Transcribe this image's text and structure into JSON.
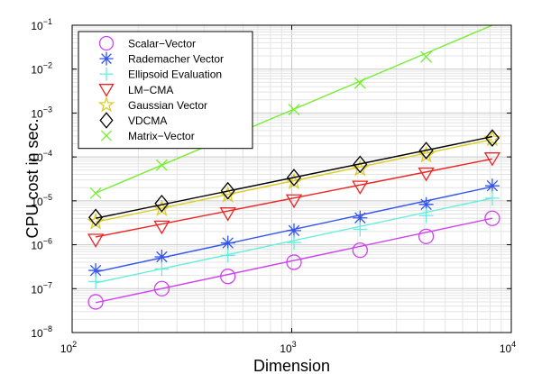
{
  "chart_data": {
    "type": "line",
    "title": "",
    "xlabel": "Dimension",
    "ylabel": "CPU cost in sec.",
    "xscale": "log",
    "yscale": "log",
    "xlim": [
      100,
      10000
    ],
    "ylim": [
      1e-08,
      0.1
    ],
    "grid": true,
    "legend_position": "top-left",
    "x_ticks": [
      {
        "base": "10",
        "exp": "2",
        "value": 100
      },
      {
        "base": "10",
        "exp": "3",
        "value": 1000
      },
      {
        "base": "10",
        "exp": "4",
        "value": 10000
      }
    ],
    "y_ticks": [
      {
        "base": "10",
        "exp": "−8",
        "value": 1e-08
      },
      {
        "base": "10",
        "exp": "−7",
        "value": 1e-07
      },
      {
        "base": "10",
        "exp": "−6",
        "value": 1e-06
      },
      {
        "base": "10",
        "exp": "−5",
        "value": 1e-05
      },
      {
        "base": "10",
        "exp": "−4",
        "value": 0.0001
      },
      {
        "base": "10",
        "exp": "−3",
        "value": 0.001
      },
      {
        "base": "10",
        "exp": "−2",
        "value": 0.01
      },
      {
        "base": "10",
        "exp": "−1",
        "value": 0.1
      }
    ],
    "x": [
      128,
      256,
      512,
      1024,
      2048,
      4096,
      8192
    ],
    "series": [
      {
        "name": "Scalar−Vector",
        "color": "#cc44ee",
        "marker": "circle",
        "values": [
          5e-08,
          1e-07,
          1.9e-07,
          4e-07,
          7.5e-07,
          1.55e-06,
          4e-06
        ],
        "fit": [
          4.8e-08,
          4e-06
        ]
      },
      {
        "name": "Rademacher Vector",
        "color": "#3355ee",
        "marker": "asterisk",
        "values": [
          2.6e-07,
          5.3e-07,
          1.1e-06,
          2.1e-06,
          4.1e-06,
          8.3e-06,
          2.2e-05
        ],
        "fit": [
          2.4e-07,
          2.1e-05
        ]
      },
      {
        "name": "Ellipsoid Evaluation",
        "color": "#66eedd",
        "marker": "plus",
        "values": [
          1.45e-07,
          2.8e-07,
          5.7e-07,
          1.12e-06,
          2.25e-06,
          4.6e-06,
          1.15e-05
        ],
        "fit": [
          1.35e-07,
          1.15e-05
        ]
      },
      {
        "name": "LM−CMA",
        "color": "#ee2222",
        "marker": "triangle-down",
        "values": [
          1.3e-06,
          2.6e-06,
          5.2e-06,
          1.03e-05,
          2.1e-05,
          4.2e-05,
          9.3e-05
        ],
        "fit": [
          1.5e-06,
          9e-05
        ]
      },
      {
        "name": "Gaussian Vector",
        "color": "#ddcc22",
        "marker": "star",
        "values": [
          3.3e-06,
          6.6e-06,
          1.35e-05,
          2.7e-05,
          5.4e-05,
          0.00011,
          0.00026
        ],
        "fit": [
          3.3e-06,
          0.00025
        ]
      },
      {
        "name": "VDCMA",
        "color": "#000000",
        "marker": "diamond",
        "values": [
          4.2e-06,
          8.7e-06,
          1.7e-05,
          3.4e-05,
          6.8e-05,
          0.00014,
          0.00027
        ],
        "fit": [
          4e-06,
          0.00029
        ]
      },
      {
        "name": "Matrix−Vector",
        "color": "#77ee33",
        "marker": "x",
        "values": [
          1.5e-05,
          6.5e-05,
          null,
          0.0012,
          0.0048,
          0.019,
          null
        ],
        "fit": [
          1.5e-05,
          0.1
        ]
      }
    ]
  }
}
